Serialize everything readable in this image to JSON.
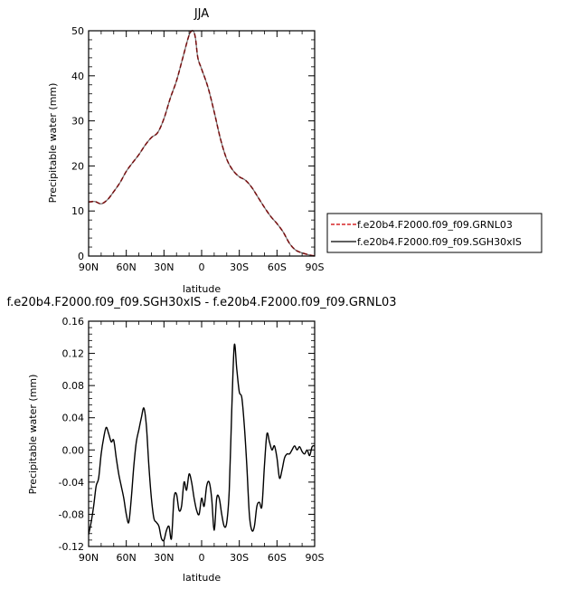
{
  "chart_data": [
    {
      "type": "line",
      "title": "JJA",
      "xlabel": "latitude",
      "ylabel": "Precipitable water (mm)",
      "x_ticks": [
        "90N",
        "60N",
        "30N",
        "0",
        "30S",
        "60S",
        "90S"
      ],
      "x_tick_values": [
        90,
        60,
        30,
        0,
        -30,
        -60,
        -90
      ],
      "xlim": [
        90,
        -90
      ],
      "ylim": [
        0,
        50
      ],
      "y_ticks": [
        "0",
        "10",
        "20",
        "30",
        "40",
        "50"
      ],
      "y_tick_values": [
        0,
        10,
        20,
        30,
        40,
        50
      ],
      "legend_position": "right",
      "colors": {
        "GRNL03": "#d62728",
        "SGH30xIS": "#000000"
      },
      "series": [
        {
          "name": "f.e20b4.F2000.f09_f09.GRNL03",
          "style": "dashed",
          "x": [
            90,
            85,
            80,
            75,
            70,
            65,
            60,
            55,
            50,
            45,
            40,
            35,
            30,
            25,
            20,
            15,
            10,
            7,
            5,
            3,
            0,
            -5,
            -10,
            -15,
            -20,
            -25,
            -30,
            -35,
            -40,
            -45,
            -50,
            -55,
            -60,
            -65,
            -70,
            -75,
            -80,
            -85,
            -90
          ],
          "y": [
            12,
            12.1,
            11.6,
            12.5,
            14.3,
            16.3,
            18.8,
            20.7,
            22.5,
            24.6,
            26.3,
            27.4,
            30.5,
            35,
            38.9,
            44,
            49,
            50,
            48.5,
            44,
            41.5,
            37.5,
            32,
            26,
            21.5,
            19,
            17.6,
            16.8,
            15.2,
            13,
            10.8,
            8.8,
            7.2,
            5.3,
            2.8,
            1.3,
            0.7,
            0.3,
            0
          ]
        },
        {
          "name": "f.e20b4.F2000.f09_f09.SGH30xIS",
          "style": "solid",
          "x": [
            90,
            85,
            80,
            75,
            70,
            65,
            60,
            55,
            50,
            45,
            40,
            35,
            30,
            25,
            20,
            15,
            10,
            7,
            5,
            3,
            0,
            -5,
            -10,
            -15,
            -20,
            -25,
            -30,
            -35,
            -40,
            -45,
            -50,
            -55,
            -60,
            -65,
            -70,
            -75,
            -80,
            -85,
            -90
          ],
          "y": [
            12,
            12.1,
            11.6,
            12.5,
            14.3,
            16.3,
            18.8,
            20.7,
            22.5,
            24.6,
            26.3,
            27.4,
            30.5,
            35,
            38.9,
            44,
            49,
            50,
            48.5,
            44,
            41.5,
            37.5,
            32,
            26,
            21.5,
            19,
            17.6,
            16.8,
            15.2,
            13,
            10.8,
            8.8,
            7.2,
            5.3,
            2.8,
            1.3,
            0.7,
            0.3,
            0
          ]
        }
      ]
    },
    {
      "type": "line",
      "title": "f.e20b4.F2000.f09_f09.SGH30xIS - f.e20b4.F2000.f09_f09.GRNL03",
      "xlabel": "latitude",
      "ylabel": "Precipitable water (mm)",
      "x_ticks": [
        "90N",
        "60N",
        "30N",
        "0",
        "30S",
        "60S",
        "90S"
      ],
      "x_tick_values": [
        90,
        60,
        30,
        0,
        -30,
        -60,
        -90
      ],
      "xlim": [
        90,
        -90
      ],
      "ylim": [
        -0.12,
        0.16
      ],
      "y_ticks": [
        "-0.12",
        "-0.08",
        "-0.04",
        "0.00",
        "0.04",
        "0.08",
        "0.12",
        "0.16"
      ],
      "y_tick_values": [
        -0.12,
        -0.08,
        -0.04,
        0,
        0.04,
        0.08,
        0.12,
        0.16
      ],
      "series": [
        {
          "style": "solid",
          "x": [
            90,
            88,
            86,
            84,
            82,
            80,
            78,
            76,
            74,
            72,
            70,
            68,
            66,
            64,
            62,
            60,
            58,
            56,
            54,
            52,
            50,
            48,
            46,
            44,
            42,
            40,
            38,
            36,
            34,
            32,
            30,
            28,
            26,
            24,
            22,
            20,
            18,
            16,
            14,
            12,
            10,
            8,
            6,
            4,
            2,
            0,
            -2,
            -4,
            -6,
            -8,
            -10,
            -12,
            -14,
            -16,
            -18,
            -20,
            -22,
            -24,
            -26,
            -28,
            -30,
            -32,
            -34,
            -36,
            -38,
            -40,
            -42,
            -44,
            -46,
            -48,
            -50,
            -52,
            -54,
            -56,
            -58,
            -60,
            -62,
            -64,
            -66,
            -68,
            -70,
            -72,
            -74,
            -76,
            -78,
            -80,
            -82,
            -84,
            -86,
            -88,
            -90
          ],
          "y": [
            -0.105,
            -0.09,
            -0.07,
            -0.045,
            -0.035,
            -0.005,
            0.015,
            0.028,
            0.02,
            0.01,
            0.012,
            -0.01,
            -0.03,
            -0.045,
            -0.06,
            -0.08,
            -0.09,
            -0.06,
            -0.02,
            0.01,
            0.025,
            0.04,
            0.052,
            0.03,
            -0.02,
            -0.06,
            -0.085,
            -0.09,
            -0.095,
            -0.11,
            -0.112,
            -0.1,
            -0.095,
            -0.11,
            -0.06,
            -0.055,
            -0.075,
            -0.07,
            -0.04,
            -0.05,
            -0.03,
            -0.04,
            -0.06,
            -0.075,
            -0.08,
            -0.06,
            -0.07,
            -0.045,
            -0.04,
            -0.06,
            -0.1,
            -0.06,
            -0.06,
            -0.08,
            -0.095,
            -0.09,
            -0.05,
            0.05,
            0.13,
            0.1,
            0.072,
            0.065,
            0.03,
            -0.02,
            -0.08,
            -0.1,
            -0.095,
            -0.07,
            -0.065,
            -0.07,
            -0.02,
            0.02,
            0.01,
            0.0,
            0.005,
            -0.01,
            -0.035,
            -0.025,
            -0.01,
            -0.005,
            -0.005,
            0.0,
            0.005,
            0.0,
            0.004,
            -0.002,
            -0.005,
            0.0,
            -0.007,
            0.004,
            0.005
          ]
        }
      ]
    }
  ]
}
